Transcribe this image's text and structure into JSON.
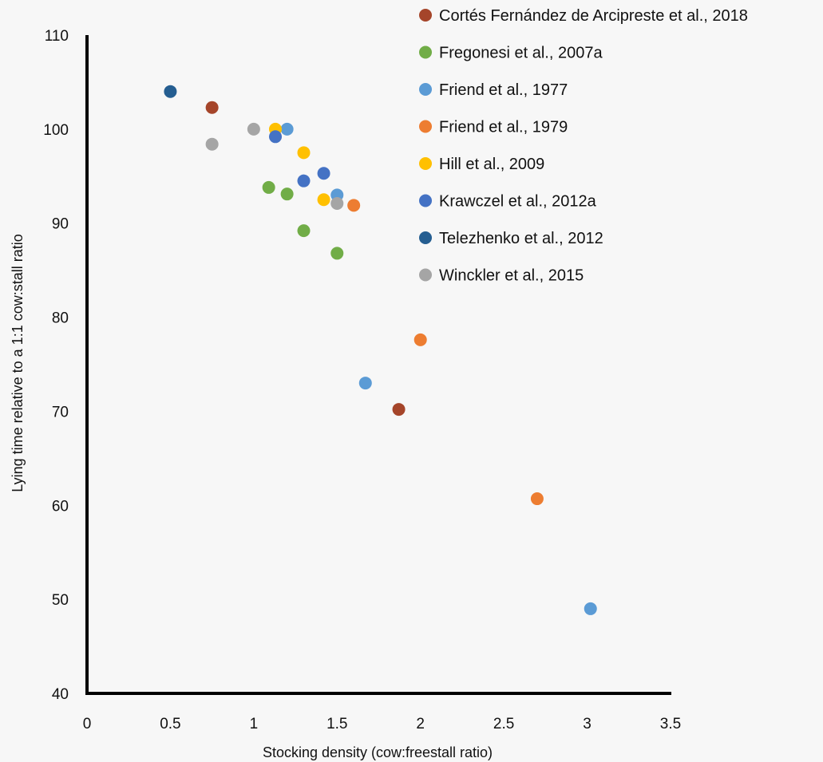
{
  "chart_data": {
    "type": "scatter",
    "title": "",
    "xlabel": "Stocking density (cow:freestall ratio)",
    "ylabel": "Lying time relative to a  1:1 cow:stall ratio",
    "xlim": [
      0,
      3.5
    ],
    "ylim": [
      40,
      110
    ],
    "xticks": [
      "0",
      "0.5",
      "1",
      "1.5",
      "2",
      "2.5",
      "3",
      "3.5"
    ],
    "yticks": [
      "40",
      "50",
      "60",
      "70",
      "80",
      "90",
      "100",
      "110"
    ],
    "grid": false,
    "legend_position": "top-right",
    "series": [
      {
        "name": "Cortés Fernández de Arcipreste et al., 2018",
        "color": "#a5452a",
        "points": [
          [
            0.75,
            102.3
          ],
          [
            1.87,
            70.2
          ]
        ]
      },
      {
        "name": "Fregonesi et al., 2007a",
        "color": "#71ad47",
        "points": [
          [
            1.09,
            93.8
          ],
          [
            1.2,
            93.1
          ],
          [
            1.3,
            89.2
          ],
          [
            1.5,
            86.8
          ]
        ]
      },
      {
        "name": "Friend et al., 1977",
        "color": "#5b9bd5",
        "points": [
          [
            1.2,
            100.0
          ],
          [
            1.5,
            93.0
          ],
          [
            1.67,
            73.0
          ],
          [
            3.02,
            49.0
          ]
        ]
      },
      {
        "name": "Friend et al., 1979",
        "color": "#ed7d31",
        "points": [
          [
            1.6,
            91.9
          ],
          [
            2.0,
            77.6
          ],
          [
            2.7,
            60.7
          ]
        ]
      },
      {
        "name": "Hill et al., 2009",
        "color": "#ffc000",
        "points": [
          [
            1.13,
            100.0
          ],
          [
            1.3,
            97.5
          ],
          [
            1.42,
            92.5
          ]
        ]
      },
      {
        "name": "Krawczel et al., 2012a",
        "color": "#4472c4",
        "points": [
          [
            1.13,
            99.2
          ],
          [
            1.3,
            94.5
          ],
          [
            1.42,
            95.3
          ]
        ]
      },
      {
        "name": "Telezhenko et al., 2012",
        "color": "#255e91",
        "points": [
          [
            0.5,
            104.0
          ]
        ]
      },
      {
        "name": "Winckler et al., 2015",
        "color": "#a5a5a5",
        "points": [
          [
            0.75,
            98.4
          ],
          [
            1.0,
            100.0
          ],
          [
            1.5,
            92.1
          ]
        ]
      }
    ]
  }
}
